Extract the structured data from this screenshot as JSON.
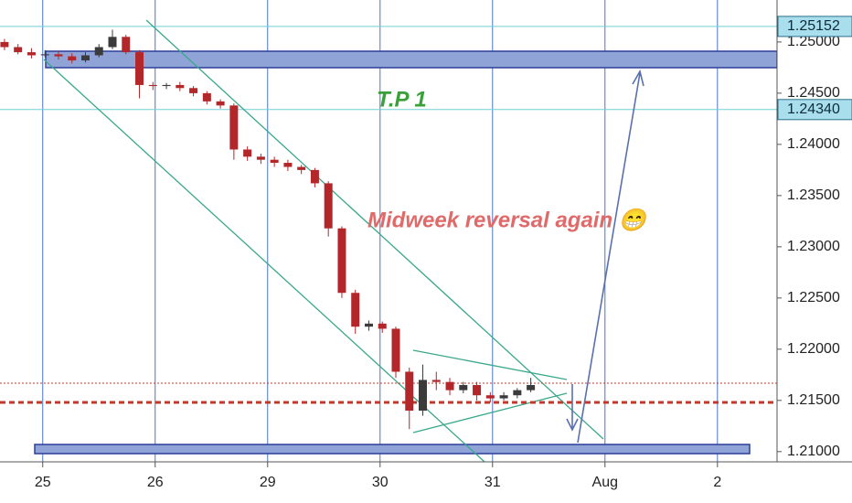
{
  "chart_data": {
    "type": "candlestick",
    "x": [
      -0.34,
      -0.22,
      -0.1,
      0.02,
      0.14,
      0.26,
      0.38,
      0.5,
      0.62,
      0.74,
      0.86,
      0.98,
      1.1,
      1.22,
      1.34,
      1.46,
      1.58,
      1.7,
      1.82,
      1.94,
      2.06,
      2.18,
      2.3,
      2.42,
      2.54,
      2.66,
      2.78,
      2.9,
      3.02,
      3.14,
      3.26,
      3.38,
      3.5,
      3.62,
      3.74,
      3.86,
      3.98,
      4.1,
      4.22,
      4.34
    ],
    "open": [
      1.25,
      1.2495,
      1.249,
      1.2487,
      1.2488,
      1.2486,
      1.2482,
      1.2487,
      1.2495,
      1.2505,
      1.249,
      1.2458,
      1.2457,
      1.2458,
      1.2455,
      1.245,
      1.2442,
      1.2438,
      1.2395,
      1.2388,
      1.2385,
      1.2382,
      1.2378,
      1.2375,
      1.2362,
      1.2318,
      1.2255,
      1.2222,
      1.2225,
      1.222,
      1.2178,
      1.214,
      1.217,
      1.2168,
      1.216,
      1.2165,
      1.2155,
      1.2152,
      1.2155,
      1.216
    ],
    "high": [
      1.2503,
      1.2498,
      1.2494,
      1.2492,
      1.2491,
      1.2489,
      1.249,
      1.2498,
      1.2512,
      1.2507,
      1.2492,
      1.2461,
      1.246,
      1.2461,
      1.2457,
      1.2452,
      1.2444,
      1.244,
      1.2398,
      1.2391,
      1.2388,
      1.2385,
      1.238,
      1.2377,
      1.2364,
      1.232,
      1.2258,
      1.2228,
      1.2227,
      1.2222,
      1.2182,
      1.2185,
      1.2178,
      1.2172,
      1.2168,
      1.2168,
      1.2158,
      1.2158,
      1.2162,
      1.2172
    ],
    "low": [
      1.2492,
      1.2488,
      1.2484,
      1.2485,
      1.2483,
      1.2479,
      1.248,
      1.2485,
      1.2493,
      1.2488,
      1.2445,
      1.2453,
      1.2454,
      1.2452,
      1.2447,
      1.2439,
      1.2435,
      1.2385,
      1.2384,
      1.2381,
      1.2378,
      1.2374,
      1.2371,
      1.2358,
      1.231,
      1.225,
      1.2215,
      1.2218,
      1.2216,
      1.2172,
      1.2122,
      1.2135,
      1.216,
      1.2155,
      1.2157,
      1.215,
      1.2148,
      1.215,
      1.2152,
      1.2158
    ],
    "close": [
      1.2495,
      1.249,
      1.2487,
      1.2488,
      1.2486,
      1.2482,
      1.2487,
      1.2495,
      1.2505,
      1.249,
      1.2458,
      1.2457,
      1.2458,
      1.2455,
      1.245,
      1.2442,
      1.2438,
      1.2395,
      1.2388,
      1.2385,
      1.2382,
      1.2378,
      1.2375,
      1.2362,
      1.2318,
      1.2255,
      1.2222,
      1.2225,
      1.222,
      1.2178,
      1.214,
      1.217,
      1.2168,
      1.216,
      1.2165,
      1.2155,
      1.2152,
      1.2155,
      1.216,
      1.2165
    ],
    "up_color": "#3b3b3b",
    "down_color": "#b3262a",
    "xlim": [
      -0.38,
      6.53
    ],
    "xticks": [
      {
        "value": 0,
        "label": "25"
      },
      {
        "value": 1,
        "label": "26"
      },
      {
        "value": 2,
        "label": "29"
      },
      {
        "value": 3,
        "label": "30"
      },
      {
        "value": 4,
        "label": "31"
      },
      {
        "value": 5,
        "label": "Aug"
      },
      {
        "value": 6,
        "label": "2"
      }
    ],
    "ylim": [
      1.209,
      1.2541
    ],
    "yticks": [
      {
        "value": 1.21,
        "label": "1.21000"
      },
      {
        "value": 1.215,
        "label": "1.21500"
      },
      {
        "value": 1.22,
        "label": "1.22000"
      },
      {
        "value": 1.225,
        "label": "1.22500"
      },
      {
        "value": 1.23,
        "label": "1.23000"
      },
      {
        "value": 1.235,
        "label": "1.23500"
      },
      {
        "value": 1.24,
        "label": "1.24000"
      },
      {
        "value": 1.245,
        "label": "1.24500"
      },
      {
        "value": 1.25,
        "label": "1.25000"
      }
    ],
    "grid": true,
    "price_lines": [
      {
        "value": 1.25152
      },
      {
        "value": 1.2434,
        "label": "1.24340"
      }
    ],
    "annotations": [
      "T.P 1",
      "Midweek reversal again 😁"
    ]
  }
}
